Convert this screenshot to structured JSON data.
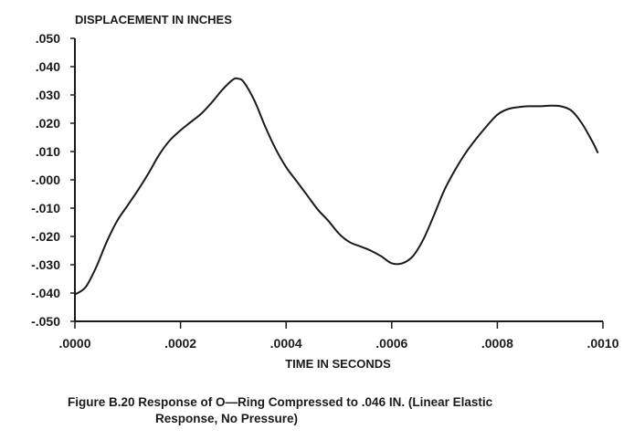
{
  "chart_data": {
    "type": "line",
    "ylabel": "DISPLACEMENT IN INCHES",
    "xlabel": "TIME IN SECONDS",
    "xlim": [
      0,
      0.001
    ],
    "ylim": [
      -0.05,
      0.05
    ],
    "x_ticks": [
      {
        "value": 0.0,
        "label": ".0000"
      },
      {
        "value": 0.0002,
        "label": ".0002"
      },
      {
        "value": 0.0004,
        "label": ".0004"
      },
      {
        "value": 0.0006,
        "label": ".0006"
      },
      {
        "value": 0.0008,
        "label": ".0008"
      },
      {
        "value": 0.001,
        "label": ".0010"
      }
    ],
    "y_ticks": [
      {
        "value": 0.05,
        "label": ".050"
      },
      {
        "value": 0.04,
        "label": ".040"
      },
      {
        "value": 0.03,
        "label": ".030"
      },
      {
        "value": 0.02,
        "label": ".020"
      },
      {
        "value": 0.01,
        "label": ".010"
      },
      {
        "value": 0.0,
        "label": "-.000"
      },
      {
        "value": -0.01,
        "label": "-.010"
      },
      {
        "value": -0.02,
        "label": "-.020"
      },
      {
        "value": -0.03,
        "label": "-.030"
      },
      {
        "value": -0.04,
        "label": "-.040"
      },
      {
        "value": -0.05,
        "label": "-.050"
      }
    ],
    "grid": false,
    "series": [
      {
        "x": [
          0.0,
          2e-05,
          4e-05,
          6e-05,
          8e-05,
          0.0001,
          0.00012,
          0.00014,
          0.00016,
          0.00018,
          0.0002,
          0.00022,
          0.00024,
          0.00026,
          0.00028,
          0.0003,
          0.00031,
          0.00032,
          0.00034,
          0.00036,
          0.00038,
          0.0004,
          0.00042,
          0.00044,
          0.00046,
          0.00048,
          0.0005,
          0.00052,
          0.00054,
          0.00056,
          0.00058,
          0.0006,
          0.00062,
          0.00064,
          0.00066,
          0.00068,
          0.0007,
          0.00072,
          0.00074,
          0.00076,
          0.00078,
          0.0008,
          0.00082,
          0.00084,
          0.00086,
          0.00088,
          0.0009,
          0.00092,
          0.00094,
          0.00096,
          0.00098,
          0.00099
        ],
        "y": [
          -0.0405,
          -0.038,
          -0.031,
          -0.022,
          -0.0145,
          -0.009,
          -0.0035,
          0.0025,
          0.009,
          0.014,
          0.0175,
          0.0205,
          0.0235,
          0.0275,
          0.032,
          0.0355,
          0.0357,
          0.0345,
          0.028,
          0.019,
          0.011,
          0.0045,
          -0.0005,
          -0.0055,
          -0.0105,
          -0.0145,
          -0.019,
          -0.022,
          -0.0235,
          -0.025,
          -0.027,
          -0.0295,
          -0.0295,
          -0.027,
          -0.021,
          -0.0125,
          -0.0035,
          0.0035,
          0.0095,
          0.0145,
          0.019,
          0.023,
          0.025,
          0.0257,
          0.026,
          0.026,
          0.0262,
          0.026,
          0.0245,
          0.02,
          0.0135,
          0.0097
        ]
      }
    ]
  },
  "caption": {
    "line1": "Figure B.20 Response of O—Ring Compressed to .046 IN. (Linear Elastic",
    "line2": "Response, No Pressure)"
  }
}
